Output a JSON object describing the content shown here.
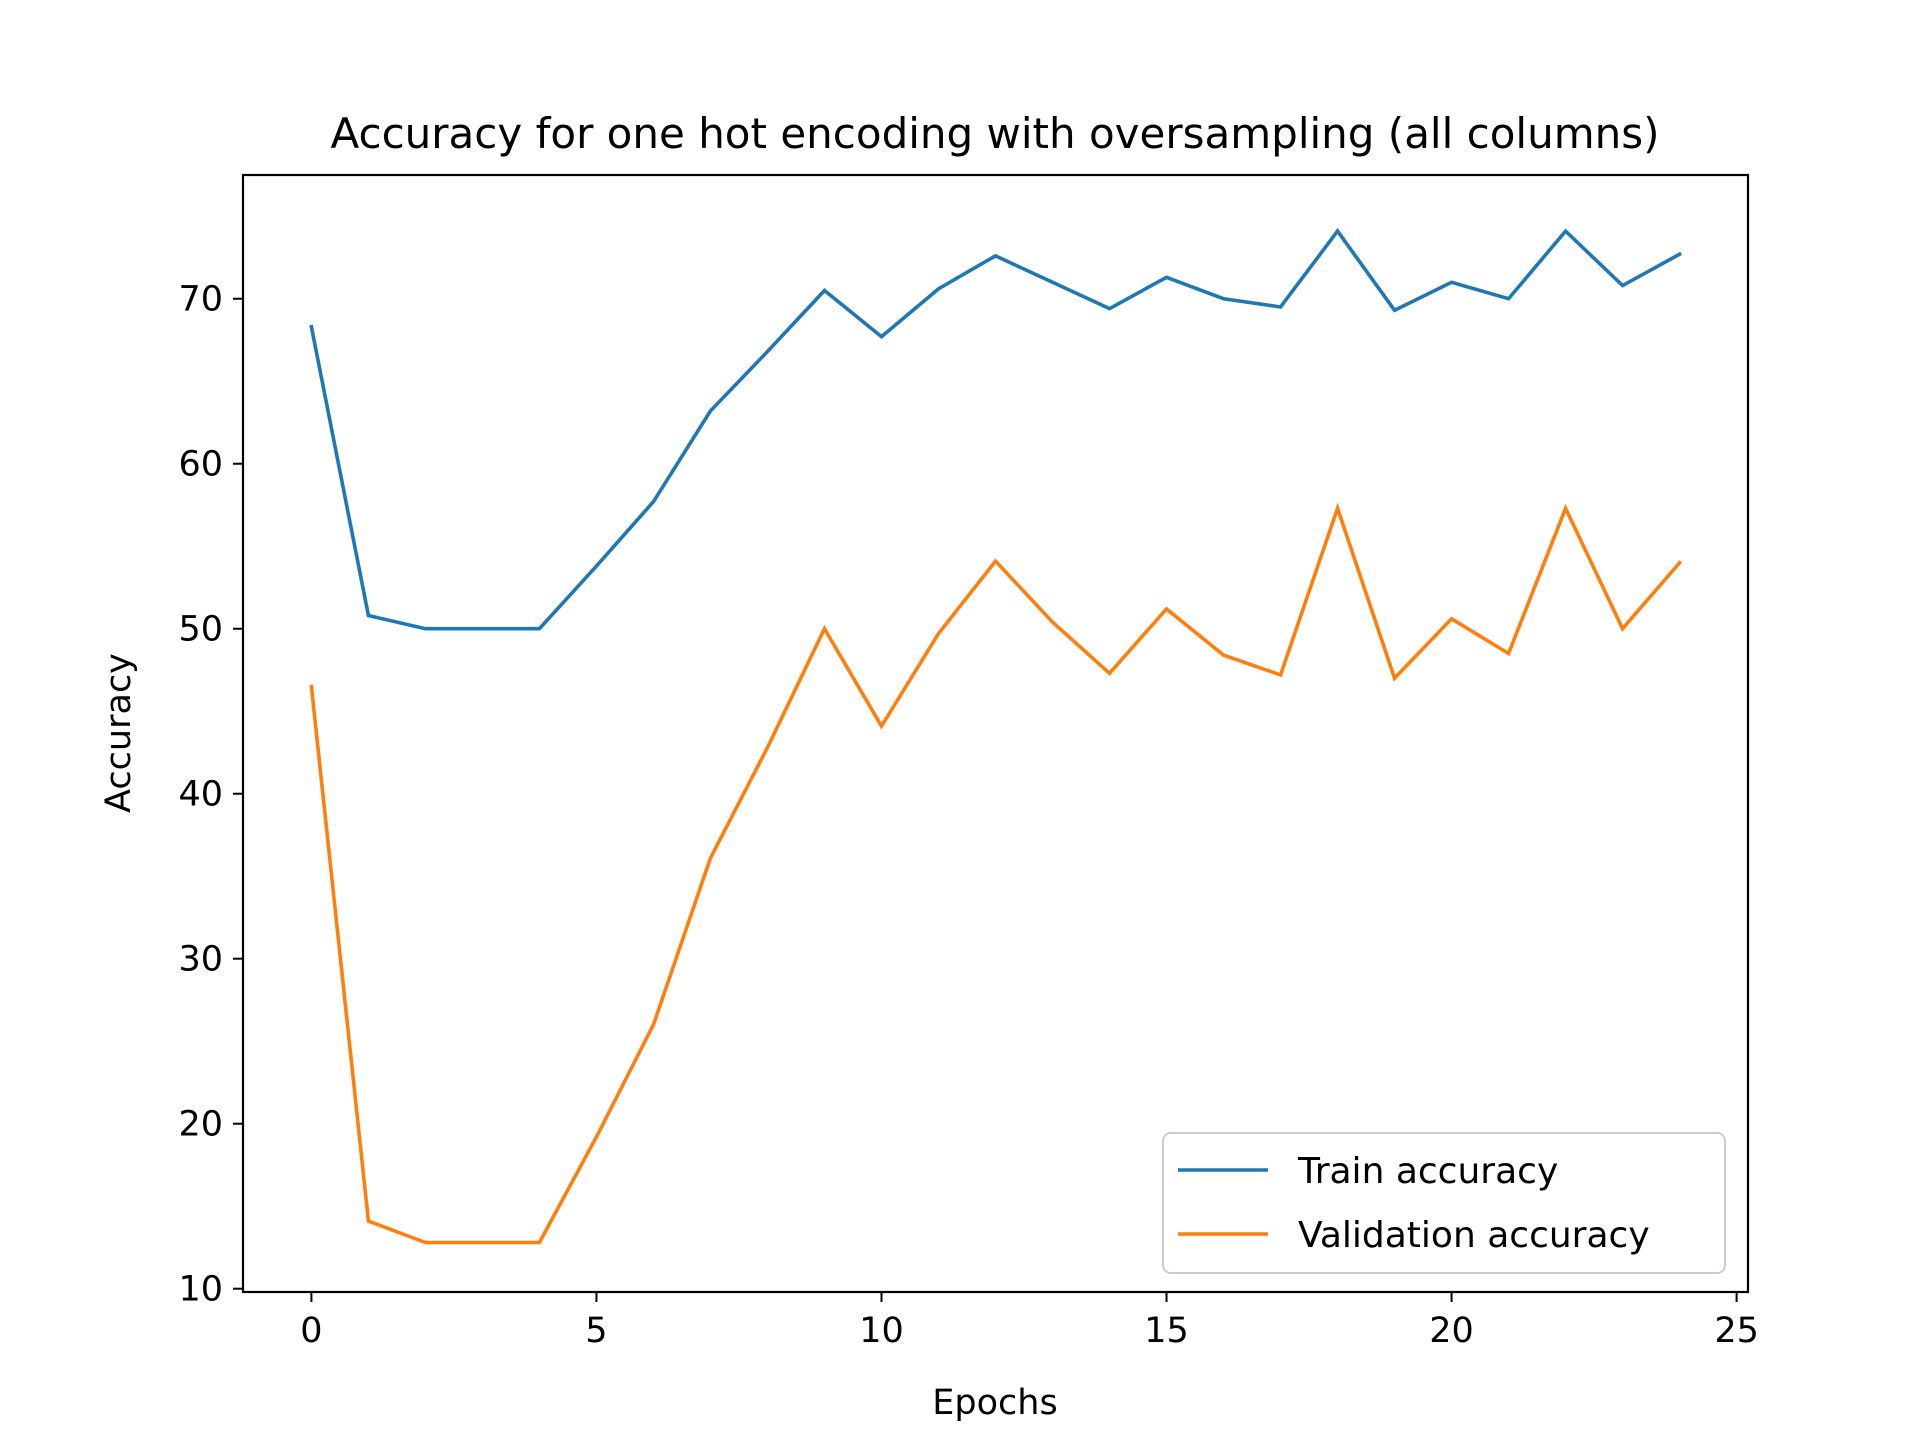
{
  "chart_data": {
    "type": "line",
    "title": "Accuracy for one hot encoding with oversampling (all columns)",
    "xlabel": "Epochs",
    "ylabel": "Accuracy",
    "xlim": [
      -1.2,
      25.2
    ],
    "ylim": [
      9.8,
      77.5
    ],
    "xticks": [
      0,
      5,
      10,
      15,
      20,
      25
    ],
    "yticks": [
      10,
      20,
      30,
      40,
      50,
      60,
      70
    ],
    "grid": false,
    "legend_position": "lower right",
    "x": [
      0,
      1,
      2,
      3,
      4,
      5,
      6,
      7,
      8,
      9,
      10,
      11,
      12,
      13,
      14,
      15,
      16,
      17,
      18,
      19,
      20,
      21,
      22,
      23,
      24
    ],
    "series": [
      {
        "name": "Train accuracy",
        "color": "#1f77b4",
        "values": [
          68.3,
          50.8,
          50.0,
          50.0,
          50.0,
          53.8,
          57.7,
          63.2,
          66.8,
          70.5,
          67.7,
          70.6,
          72.6,
          71.0,
          69.4,
          71.3,
          70.0,
          69.5,
          74.1,
          69.3,
          71.0,
          70.0,
          74.1,
          70.8,
          72.7
        ]
      },
      {
        "name": "Validation accuracy",
        "color": "#ff7f0e",
        "values": [
          46.5,
          14.1,
          12.8,
          12.8,
          12.8,
          19.2,
          26.0,
          36.1,
          42.8,
          50.0,
          44.1,
          49.7,
          54.1,
          50.4,
          47.3,
          51.2,
          48.4,
          47.2,
          57.3,
          47.0,
          50.6,
          48.5,
          57.3,
          50.0,
          54.0
        ]
      }
    ]
  }
}
